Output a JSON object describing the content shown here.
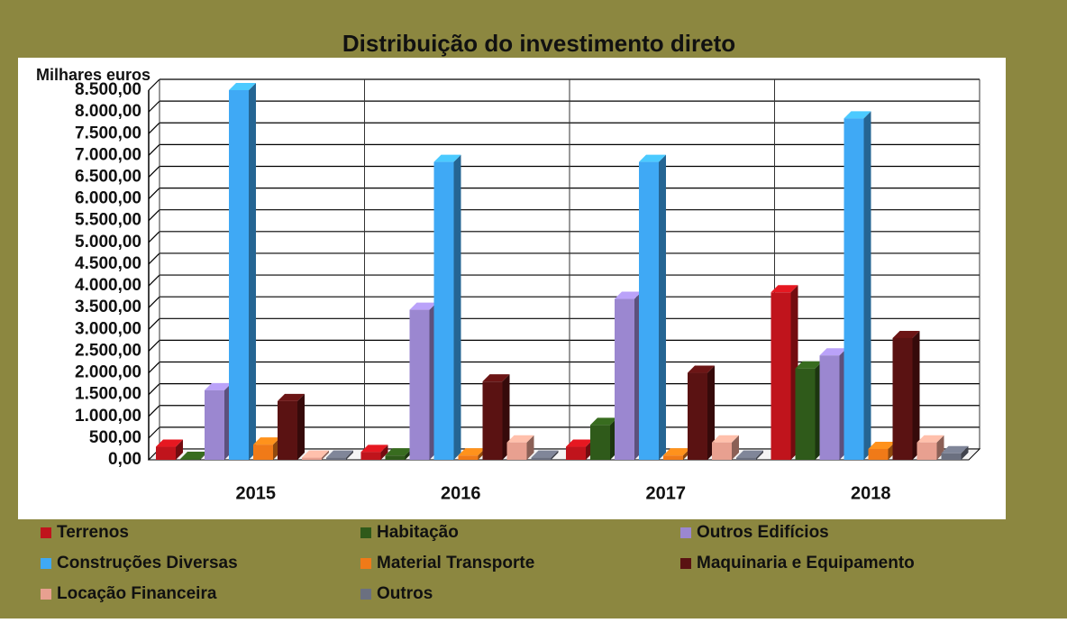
{
  "chart_data": {
    "type": "bar3d",
    "title": "Distribuição do investimento direto",
    "y_label": "Milhares euros",
    "categories": [
      "2015",
      "2016",
      "2017",
      "2018"
    ],
    "ylim": [
      0,
      8500
    ],
    "yticks": [
      {
        "value": 0,
        "label": "0,00"
      },
      {
        "value": 500,
        "label": "500,00"
      },
      {
        "value": 1000,
        "label": "1.000,00"
      },
      {
        "value": 1500,
        "label": "1.500,00"
      },
      {
        "value": 2000,
        "label": "2.000,00"
      },
      {
        "value": 2500,
        "label": "2.500,00"
      },
      {
        "value": 3000,
        "label": "3.000,00"
      },
      {
        "value": 3500,
        "label": "3.500,00"
      },
      {
        "value": 4000,
        "label": "4.000,00"
      },
      {
        "value": 4500,
        "label": "4.500,00"
      },
      {
        "value": 5000,
        "label": "5.000,00"
      },
      {
        "value": 5500,
        "label": "5.500,00"
      },
      {
        "value": 6000,
        "label": "6.000,00"
      },
      {
        "value": 6500,
        "label": "6.500,00"
      },
      {
        "value": 7000,
        "label": "7.000,00"
      },
      {
        "value": 7500,
        "label": "7.500,00"
      },
      {
        "value": 8000,
        "label": "8.000,00"
      },
      {
        "value": 8500,
        "label": "8.500,00"
      }
    ],
    "grid": true,
    "series": [
      {
        "name": "Terrenos",
        "color": "#c0141c",
        "values": [
          300,
          180,
          300,
          3850
        ]
      },
      {
        "name": "Habitação",
        "color": "#2f5a1a",
        "values": [
          20,
          100,
          800,
          2100
        ]
      },
      {
        "name": "Outros Edifícios",
        "color": "#9b87d0",
        "values": [
          1600,
          3450,
          3700,
          2400
        ]
      },
      {
        "name": "Construções Diversas",
        "color": "#3fa9f5",
        "values": [
          8500,
          6850,
          6850,
          7850
        ]
      },
      {
        "name": "Material Transporte",
        "color": "#f07a18",
        "values": [
          350,
          100,
          100,
          250
        ]
      },
      {
        "name": "Maquinaria e Equipamento",
        "color": "#5a1212",
        "values": [
          1350,
          1800,
          2000,
          2800
        ]
      },
      {
        "name": "Locação Financeira",
        "color": "#e8a090",
        "values": [
          50,
          400,
          400,
          400
        ]
      },
      {
        "name": "Outros",
        "color": "#6b7080",
        "values": [
          50,
          50,
          50,
          150
        ]
      }
    ]
  }
}
